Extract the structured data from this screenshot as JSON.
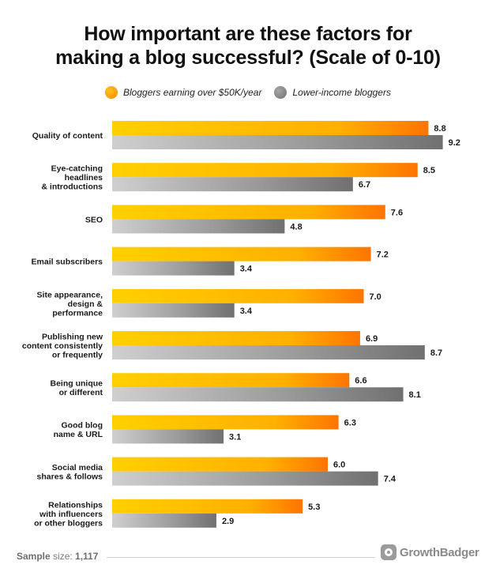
{
  "chart_data": {
    "type": "bar",
    "orientation": "horizontal",
    "title_line1": "How important are these factors for",
    "title_line2": "making a blog successful? (Scale of 0-10)",
    "xlim": [
      0,
      10
    ],
    "categories": [
      [
        "Quality of content"
      ],
      [
        "Eye-catching",
        "headlines",
        "& introductions"
      ],
      [
        "SEO"
      ],
      [
        "Email subscribers"
      ],
      [
        "Site appearance,",
        "design &",
        "performance"
      ],
      [
        "Publishing new",
        "content consistently",
        "or frequently"
      ],
      [
        "Being unique",
        "or different"
      ],
      [
        "Good blog",
        "name & URL"
      ],
      [
        "Social media",
        "shares & follows"
      ],
      [
        "Relationships",
        "with influencers",
        "or other bloggers"
      ]
    ],
    "series": [
      {
        "name": "Bloggers earning over $50K/year",
        "color": "#ffa000",
        "values": [
          8.8,
          8.5,
          7.6,
          7.2,
          7.0,
          6.9,
          6.6,
          6.3,
          6.0,
          5.3
        ]
      },
      {
        "name": "Lower-income bloggers",
        "color": "#8c8c8c",
        "values": [
          9.2,
          6.7,
          4.8,
          3.4,
          3.4,
          8.7,
          8.1,
          3.1,
          7.4,
          2.9
        ]
      }
    ],
    "value_labels": [
      [
        "8.8",
        "8.5",
        "7.6",
        "7.2",
        "7.0",
        "6.9",
        "6.6",
        "6.3",
        "6.0",
        "5.3"
      ],
      [
        "9.2",
        "6.7",
        "4.8",
        "3.4",
        "3.4",
        "8.7",
        "8.1",
        "3.1",
        "7.4",
        "2.9"
      ]
    ],
    "legend_position": "top-center",
    "grid": false
  },
  "footer": {
    "sample_label": "Sample",
    "sample_rest": " size: ",
    "sample_value": "1,117",
    "brand": "GrowthBadger"
  }
}
